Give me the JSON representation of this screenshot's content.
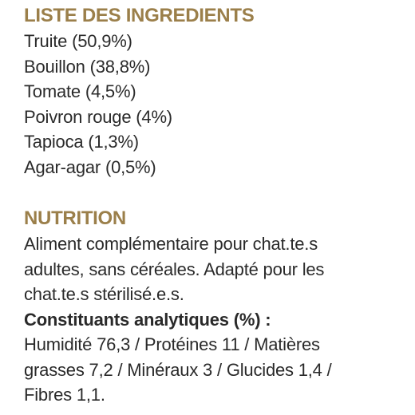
{
  "ingredients": {
    "title": "LISTE DES INGREDIENTS",
    "items": [
      "Truite (50,9%)",
      "Bouillon (38,8%)",
      "Tomate (4,5%)",
      "Poivron rouge (4%)",
      "Tapioca (1,3%)",
      "Agar-agar (0,5%)"
    ]
  },
  "nutrition": {
    "title": "NUTRITION",
    "description_lines": [
      "Aliment complémentaire pour chat.te.s",
      "adultes, sans céréales. Adapté pour les",
      "chat.te.s stérilisé.e.s."
    ],
    "analytics_heading": "Constituants analytiques (%) :",
    "analytics_lines": [
      "Humidité 76,3 / Protéines 11 / Matières",
      "grasses 7,2 / Minéraux 3 / Glucides 1,4 /",
      "Fibres 1,1."
    ]
  },
  "colors": {
    "heading": "#9b7f4a",
    "text": "#2a2a2a"
  }
}
